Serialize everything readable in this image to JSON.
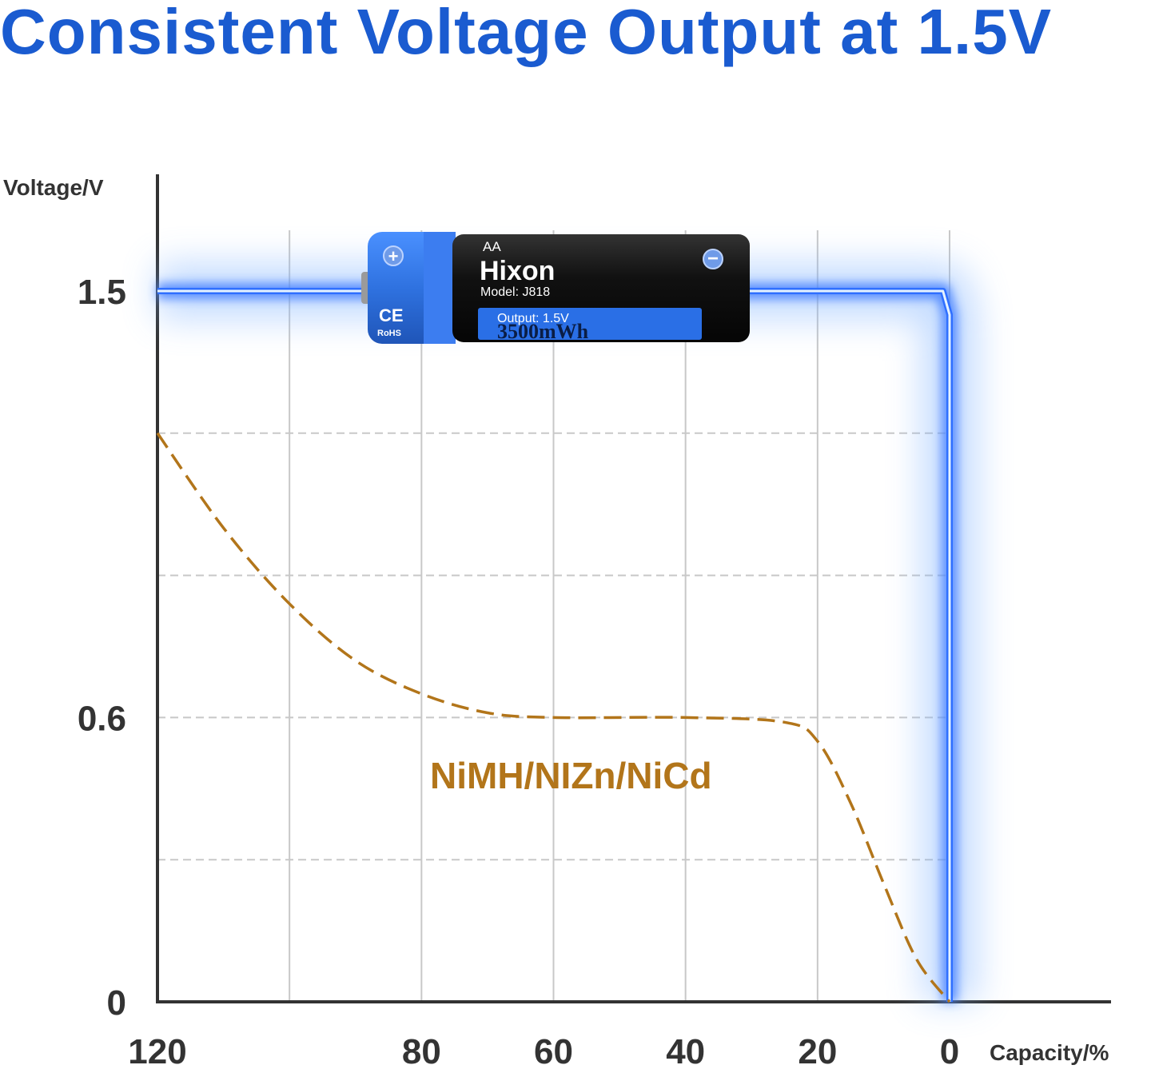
{
  "title": "Consistent Voltage Output at 1.5V",
  "colors": {
    "title": "#1a5bd0",
    "lithium_line": "#3a8cff",
    "lithium_glow": "#7fb2ff",
    "nimh_line": "#b2751a",
    "grid": "#c8c8c8",
    "axis": "#333333"
  },
  "battery": {
    "size": "AA",
    "brand": "Hixon",
    "model": "Model: J818",
    "output": "Output: 1.5V",
    "capacity": "3500mWh",
    "cert_ce": "CE",
    "cert_rohs": "RoHS",
    "plus_icon": "plus-icon",
    "minus_icon": "minus-icon"
  },
  "chart_data": {
    "type": "line",
    "title": "Consistent Voltage Output at 1.5V",
    "xlabel": "Capacity/%",
    "ylabel": "Voltage/V",
    "x_reversed": true,
    "xlim": [
      120,
      0
    ],
    "ylim": [
      0,
      1.5
    ],
    "x_ticks": [
      120,
      80,
      60,
      40,
      20,
      0
    ],
    "y_ticks": [
      1.5,
      0.6,
      0
    ],
    "grid": true,
    "series": [
      {
        "name": "",
        "style": "solid-glow",
        "x": [
          120,
          100,
          80,
          60,
          40,
          20,
          1,
          0,
          0
        ],
        "y": [
          1.5,
          1.5,
          1.5,
          1.5,
          1.5,
          1.5,
          1.5,
          1.45,
          0
        ]
      },
      {
        "name": "NiMH/NIZn/NiCd",
        "style": "dashed",
        "x": [
          120,
          110,
          100,
          90,
          80,
          70,
          60,
          40,
          25,
          20,
          15,
          10,
          5,
          0
        ],
        "y": [
          1.2,
          1.0,
          0.84,
          0.72,
          0.65,
          0.61,
          0.6,
          0.6,
          0.59,
          0.55,
          0.42,
          0.25,
          0.09,
          0
        ]
      }
    ]
  }
}
